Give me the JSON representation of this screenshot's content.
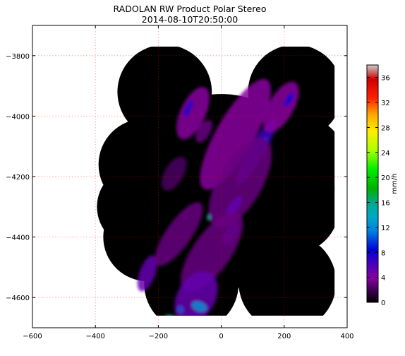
{
  "chart_data": {
    "type": "heatmap",
    "title": "RADOLAN RW Product Polar Stereo",
    "subtitle": "2014-08-10T20:50:00",
    "xlabel": "",
    "ylabel": "",
    "xlim": [
      -600,
      400
    ],
    "ylim": [
      -4700,
      -3700
    ],
    "xticks": [
      -600,
      -400,
      -200,
      0,
      200,
      400
    ],
    "yticks": [
      -3800,
      -4000,
      -4200,
      -4400,
      -4600
    ],
    "grid": true,
    "colorbar": {
      "label": "mm/h",
      "range": [
        0,
        38
      ],
      "ticks": [
        0,
        4,
        8,
        12,
        16,
        20,
        24,
        28,
        32,
        36
      ],
      "colormap": "spectral"
    },
    "radar_coverage_circles": [
      {
        "cx": -180,
        "cy": -3920,
        "r": 150
      },
      {
        "cx": -245,
        "cy": -4160,
        "r": 145
      },
      {
        "cx": -265,
        "cy": -4300,
        "r": 130
      },
      {
        "cx": -235,
        "cy": -4400,
        "r": 140
      },
      {
        "cx": -95,
        "cy": -4555,
        "r": 150
      },
      {
        "cx": 235,
        "cy": -3920,
        "r": 150
      },
      {
        "cx": 250,
        "cy": -4150,
        "r": 145
      },
      {
        "cx": 225,
        "cy": -4300,
        "r": 150
      },
      {
        "cx": 210,
        "cy": -4550,
        "r": 155
      },
      {
        "cx": 0,
        "cy": -4250,
        "r": 310
      }
    ],
    "precipitation_cells": [
      {
        "x": -90,
        "y": -3990,
        "value": 4,
        "rx": 40,
        "ry": 90,
        "rot": 25
      },
      {
        "x": -105,
        "y": -3975,
        "value": 7,
        "rx": 10,
        "ry": 30,
        "rot": 25
      },
      {
        "x": -55,
        "y": -4050,
        "value": 3,
        "rx": 20,
        "ry": 40,
        "rot": 30
      },
      {
        "x": 45,
        "y": -4060,
        "value": 4,
        "rx": 60,
        "ry": 200,
        "rot": 30
      },
      {
        "x": 110,
        "y": -4120,
        "value": 6,
        "rx": 25,
        "ry": 120,
        "rot": 30
      },
      {
        "x": 130,
        "y": -4095,
        "value": 9,
        "rx": 8,
        "ry": 30,
        "rot": 30
      },
      {
        "x": 190,
        "y": -3970,
        "value": 4,
        "rx": 40,
        "ry": 90,
        "rot": 30
      },
      {
        "x": 215,
        "y": -3945,
        "value": 8,
        "rx": 10,
        "ry": 25,
        "rot": 30
      },
      {
        "x": 60,
        "y": -4220,
        "value": 3,
        "rx": 70,
        "ry": 160,
        "rot": 30
      },
      {
        "x": 40,
        "y": -4300,
        "value": 5,
        "rx": 15,
        "ry": 40,
        "rot": 35
      },
      {
        "x": -40,
        "y": -4335,
        "value": 14,
        "rx": 6,
        "ry": 10,
        "rot": 0
      },
      {
        "x": 30,
        "y": -4390,
        "value": 6,
        "rx": 20,
        "ry": 40,
        "rot": 30
      },
      {
        "x": -30,
        "y": -4450,
        "value": 3,
        "rx": 60,
        "ry": 150,
        "rot": 35
      },
      {
        "x": -235,
        "y": -4520,
        "value": 5,
        "rx": 25,
        "ry": 60,
        "rot": 20
      },
      {
        "x": -80,
        "y": -4600,
        "value": 5,
        "rx": 60,
        "ry": 90,
        "rot": 30
      },
      {
        "x": -70,
        "y": -4630,
        "value": 12,
        "rx": 25,
        "ry": 15,
        "rot": 20
      },
      {
        "x": -130,
        "y": -4640,
        "value": 10,
        "rx": 10,
        "ry": 12,
        "rot": 0
      },
      {
        "x": -165,
        "y": -4665,
        "value": 15,
        "rx": 15,
        "ry": 8,
        "rot": 0
      },
      {
        "x": -135,
        "y": -4390,
        "value": 3,
        "rx": 40,
        "ry": 120,
        "rot": 35
      },
      {
        "x": -150,
        "y": -4190,
        "value": 2,
        "rx": 30,
        "ry": 60,
        "rot": 30
      }
    ]
  }
}
